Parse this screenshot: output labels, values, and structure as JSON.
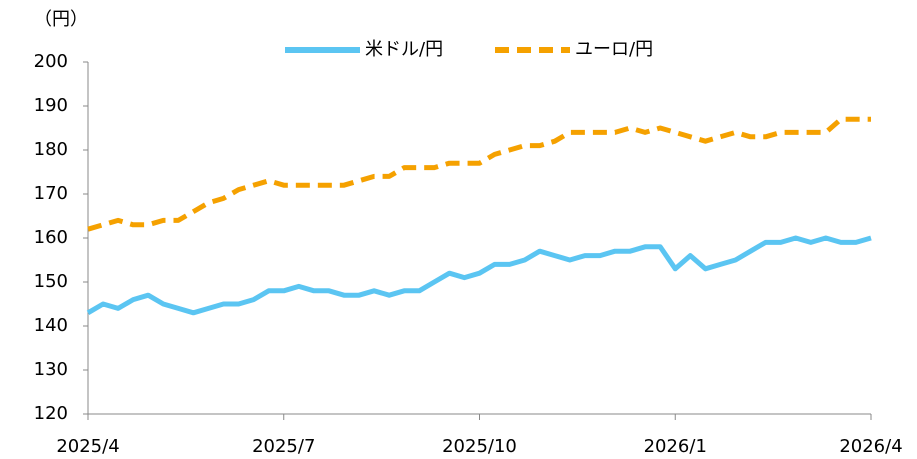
{
  "chart_data": {
    "type": "line",
    "y_label": "（円）",
    "categories": [
      "2025/4",
      null,
      null,
      null,
      null,
      null,
      null,
      null,
      null,
      null,
      null,
      null,
      null,
      "2025/7",
      null,
      null,
      null,
      null,
      null,
      null,
      null,
      null,
      null,
      null,
      null,
      null,
      "2025/10",
      null,
      null,
      null,
      null,
      null,
      null,
      null,
      null,
      null,
      null,
      null,
      null,
      "2026/1",
      null,
      null,
      null,
      null,
      null,
      null,
      null,
      null,
      null,
      null,
      null,
      null,
      "2026/4"
    ],
    "series": [
      {
        "name": "米ドル/円",
        "color": "#5bc5f2",
        "dash": false,
        "values": [
          143,
          145,
          144,
          146,
          147,
          145,
          144,
          143,
          144,
          145,
          145,
          146,
          148,
          148,
          149,
          148,
          148,
          147,
          147,
          148,
          147,
          148,
          148,
          150,
          152,
          151,
          152,
          154,
          154,
          155,
          157,
          156,
          155,
          156,
          156,
          157,
          157,
          158,
          158,
          153,
          156,
          153,
          154,
          155,
          157,
          159,
          159,
          160,
          159,
          160,
          159,
          159,
          160
        ]
      },
      {
        "name": "ユーロ/円",
        "color": "#f5a100",
        "dash": true,
        "values": [
          162,
          163,
          164,
          163,
          163,
          164,
          164,
          166,
          168,
          169,
          171,
          172,
          173,
          172,
          172,
          172,
          172,
          172,
          173,
          174,
          174,
          176,
          176,
          176,
          177,
          177,
          177,
          179,
          180,
          181,
          181,
          182,
          184,
          184,
          184,
          184,
          185,
          184,
          185,
          184,
          183,
          182,
          183,
          184,
          183,
          183,
          184,
          184,
          184,
          184,
          187,
          187,
          187
        ]
      }
    ],
    "ylim": [
      120,
      200
    ],
    "yticks": [
      120,
      130,
      140,
      150,
      160,
      170,
      180,
      190,
      200
    ],
    "grid": false,
    "legend": "top"
  }
}
